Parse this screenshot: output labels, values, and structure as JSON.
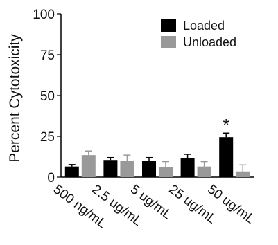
{
  "chart_data": {
    "type": "bar",
    "title": "",
    "xlabel": "",
    "ylabel": "Percent Cytotoxicity",
    "ylim": [
      0,
      100
    ],
    "yticks": [
      0,
      25,
      50,
      75,
      100
    ],
    "grid": false,
    "legend_position": "top-right",
    "categories": [
      "500 ng/mL",
      "2.5 ug/mL",
      "5 ug/mL",
      "25 ug/mL",
      "50 ug/mL"
    ],
    "series": [
      {
        "name": "Loaded",
        "color": "#000000",
        "values": [
          6.5,
          10.5,
          10,
          11.5,
          24.5
        ],
        "errors": [
          1.2,
          1.5,
          2.0,
          2.5,
          2.5
        ]
      },
      {
        "name": "Unloaded",
        "color": "#999999",
        "values": [
          13.5,
          10,
          6,
          6.5,
          3.5
        ],
        "errors": [
          2.5,
          3.5,
          3.5,
          3.0,
          4.0
        ]
      }
    ],
    "annotations": [
      {
        "text": "*",
        "category": "50 ug/mL",
        "series": "Loaded"
      }
    ]
  }
}
